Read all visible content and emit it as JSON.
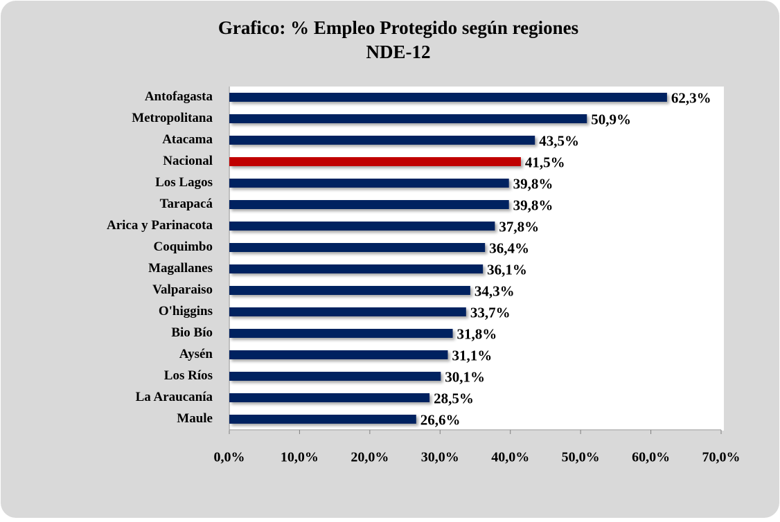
{
  "chart_data": {
    "type": "bar",
    "orientation": "horizontal",
    "title": "Grafico: % Empleo Protegido según regiones",
    "subtitle": "NDE-12",
    "categories": [
      "Antofagasta",
      "Metropolitana",
      "Atacama",
      "Nacional",
      "Los Lagos",
      "Tarapacá",
      "Arica y Parinacota",
      "Coquimbo",
      "Magallanes",
      "Valparaiso",
      "O'higgins",
      "Bio Bío",
      "Aysén",
      "Los Ríos",
      "La Araucanía",
      "Maule"
    ],
    "values": [
      62.3,
      50.9,
      43.5,
      41.5,
      39.8,
      39.8,
      37.8,
      36.4,
      36.1,
      34.3,
      33.7,
      31.8,
      31.1,
      30.1,
      28.5,
      26.6
    ],
    "value_labels": [
      "62,3%",
      "50,9%",
      "43,5%",
      "41,5%",
      "39,8%",
      "39,8%",
      "37,8%",
      "36,4%",
      "36,1%",
      "34,3%",
      "33,7%",
      "31,8%",
      "31,1%",
      "30,1%",
      "28,5%",
      "26,6%"
    ],
    "colors": [
      "#002060",
      "#002060",
      "#002060",
      "#c00000",
      "#002060",
      "#002060",
      "#002060",
      "#002060",
      "#002060",
      "#002060",
      "#002060",
      "#002060",
      "#002060",
      "#002060",
      "#002060",
      "#002060"
    ],
    "xlim": [
      0,
      70
    ],
    "xticks": [
      {
        "value": 0,
        "label": "0,0%"
      },
      {
        "value": 10,
        "label": "10,0%"
      },
      {
        "value": 20,
        "label": "20,0%"
      },
      {
        "value": 30,
        "label": "30,0%"
      },
      {
        "value": 40,
        "label": "40,0%"
      },
      {
        "value": 50,
        "label": "50,0%"
      },
      {
        "value": 60,
        "label": "60,0%"
      },
      {
        "value": 70,
        "label": "70,0%"
      }
    ],
    "grid": false
  }
}
